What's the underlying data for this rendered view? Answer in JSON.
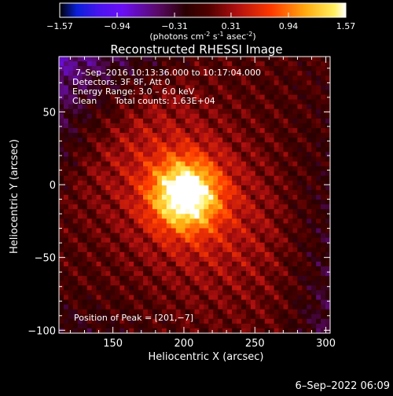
{
  "colorbar": {
    "ticks": [
      "-1.57",
      "-0.94",
      "-0.31",
      "0.31",
      "0.94",
      "1.57"
    ],
    "units_label_pre": "(photons cm",
    "units_sup1": "-2",
    "units_mid1": " s",
    "units_sup2": "-1",
    "units_mid2": " asec",
    "units_sup3": "-2",
    "units_post": ")",
    "range": [
      -1.57,
      1.57
    ],
    "colormap": "red-temperature"
  },
  "chart_data": {
    "type": "heatmap",
    "title": "Reconstructed RHESSI Image",
    "xlabel": "Heliocentric X (arcsec)",
    "ylabel": "Heliocentric Y (arcsec)",
    "xlim": [
      112,
      303
    ],
    "ylim": [
      -102,
      88
    ],
    "xticks": [
      150,
      200,
      250,
      300
    ],
    "yticks": [
      50,
      0,
      -50,
      -100
    ],
    "ytick_labels": [
      "50",
      "0",
      "−50",
      "−100"
    ],
    "peak": {
      "x": 201,
      "y": -7
    },
    "grid": false
  },
  "annotations": {
    "time_range": "7–Sep–2016 10:13:36.000 to 10:17:04.000",
    "detectors": "Detectors: 3F 8F, Att 0",
    "energy": "Energy Range: 3.0 – 6.0 keV",
    "method": "Clean",
    "counts": "Total counts: 1.63E+04",
    "peak_text": "Position of Peak = [201,−7]"
  },
  "footer": {
    "timestamp": "6–Sep–2022 06:09"
  }
}
